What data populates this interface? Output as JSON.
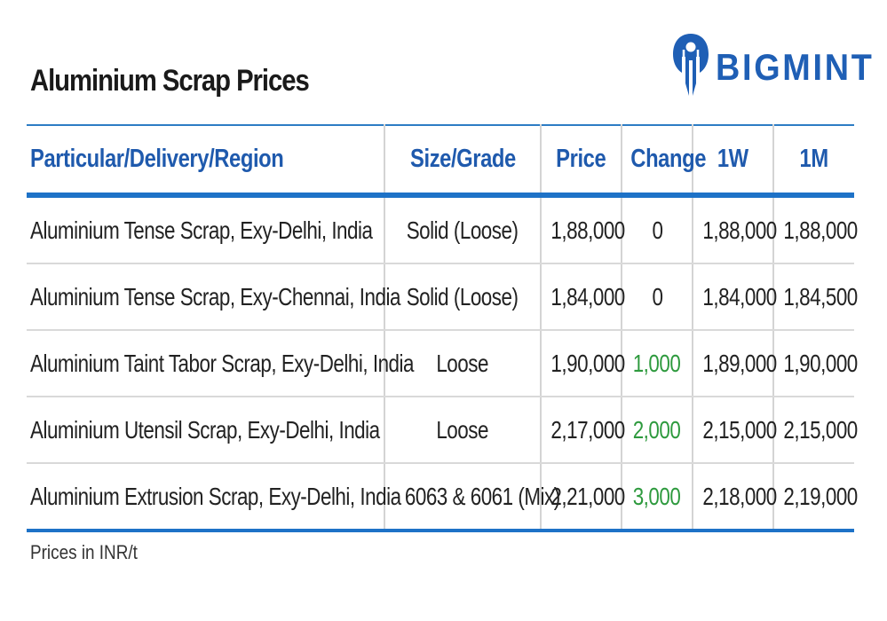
{
  "header": {
    "title": "Aluminium Scrap Prices",
    "logo_text": "BIGMINT",
    "logo_icon": "bigmint-figure-icon"
  },
  "colors": {
    "header_text": "#1f5aad",
    "rule": "#1e72c7",
    "positive_change": "#2e9a3e",
    "logo": "#1f5fb5"
  },
  "chart_data": {
    "type": "table",
    "title": "Aluminium Scrap Prices",
    "columns": [
      "Particular/Delivery/Region",
      "Size/Grade",
      "Price",
      "Change",
      "1W",
      "1M"
    ],
    "rows": [
      [
        "Aluminium Tense Scrap, Exy-Delhi, India",
        "Solid (Loose)",
        "1,88,000",
        "0",
        "1,88,000",
        "1,88,000"
      ],
      [
        "Aluminium Tense Scrap, Exy-Chennai, India",
        "Solid (Loose)",
        "1,84,000",
        "0",
        "1,84,000",
        "1,84,500"
      ],
      [
        "Aluminium Taint Tabor Scrap, Exy-Delhi, India",
        "Loose",
        "1,90,000",
        "1,000",
        "1,89,000",
        "1,90,000"
      ],
      [
        "Aluminium Utensil Scrap, Exy-Delhi, India",
        "Loose",
        "2,17,000",
        "2,000",
        "2,15,000",
        "2,15,000"
      ],
      [
        "Aluminium Extrusion Scrap, Exy-Delhi, India",
        "6063 & 6061 (Mix)",
        "2,21,000",
        "3,000",
        "2,18,000",
        "2,19,000"
      ]
    ],
    "change_direction": [
      "flat",
      "flat",
      "up",
      "up",
      "up"
    ]
  },
  "footnote": "Prices in INR/t"
}
